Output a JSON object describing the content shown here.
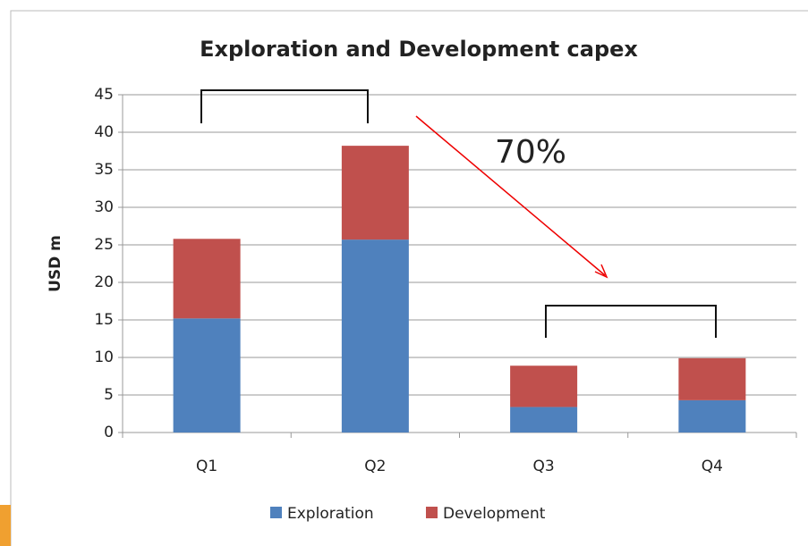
{
  "chart_data": {
    "type": "bar",
    "stacked": true,
    "title": "Exploration and Development capex",
    "y_label": "USD m",
    "annotation": "70%",
    "categories": [
      "Q1",
      "Q2",
      "Q3",
      "Q4"
    ],
    "series": [
      {
        "name": "Exploration",
        "color": "#4f81bd",
        "values": [
          15.2,
          25.7,
          3.4,
          4.3
        ]
      },
      {
        "name": "Development",
        "color": "#c0504d",
        "values": [
          10.6,
          12.5,
          5.5,
          5.6
        ]
      }
    ],
    "ylim": [
      0,
      45
    ],
    "yticks": [
      0,
      5,
      10,
      15,
      20,
      25,
      30,
      35,
      40,
      45
    ],
    "grid": true,
    "legend": "bottom"
  }
}
